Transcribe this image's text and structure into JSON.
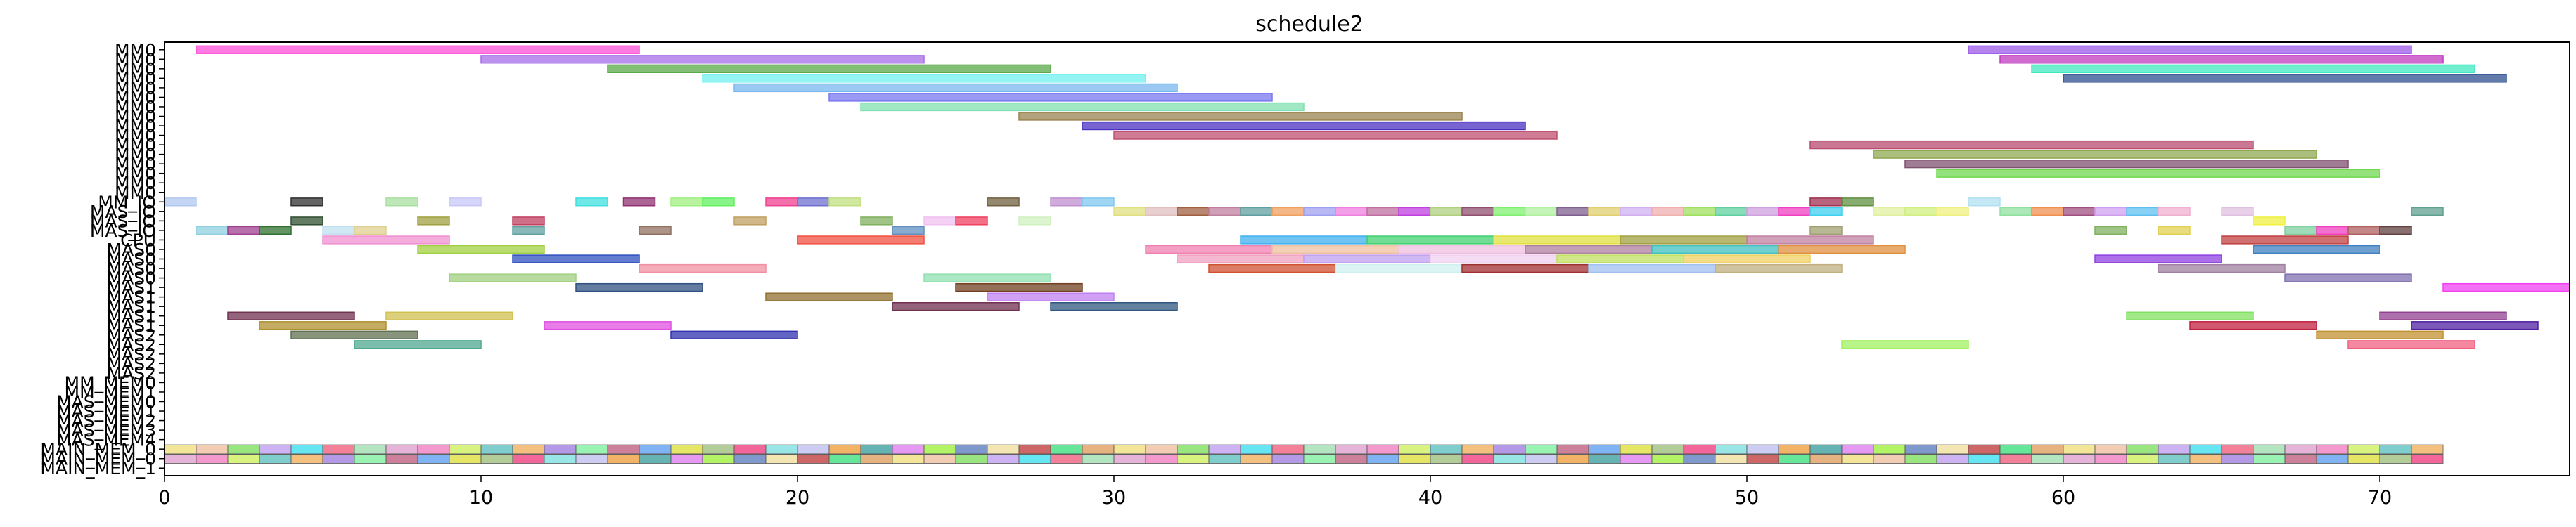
{
  "chart_data": {
    "type": "gantt",
    "title": "schedule2",
    "xlabel": "",
    "ylabel": "",
    "xlim": [
      0,
      76
    ],
    "xticks": [
      0,
      10,
      20,
      30,
      40,
      50,
      60,
      70
    ],
    "grid": false,
    "legend": "none",
    "lanes": [
      "MM0",
      "MM0",
      "MM0",
      "MM0",
      "MM0",
      "MM0",
      "MM0",
      "MM0",
      "MM0",
      "MM0",
      "MM0",
      "MM0",
      "MM0",
      "MM0",
      "MM0",
      "MM0",
      "MM_IO",
      "MAS_IO",
      "MAS_IO",
      "MAS_IO",
      "CPU",
      "MAS0",
      "MAS0",
      "MAS0",
      "MAS0",
      "MAS1",
      "MAS1",
      "MAS1",
      "MAS1",
      "MAS1",
      "MAS2",
      "MAS2",
      "MAS2",
      "MAS2",
      "MAS2",
      "MM_MEM0",
      "MM_MEM1",
      "MAS_MEM0",
      "MAS_MEM1",
      "MAS_MEM2",
      "MAS_MEM3",
      "MAS_MEM4",
      "MAIN_MEM_0",
      "MAIN_MEM_0",
      "MAIN_MEM_1"
    ],
    "tasks": [
      {
        "lane": 0,
        "start": 1,
        "end": 15,
        "color": "#ff4fd8"
      },
      {
        "lane": 0,
        "start": 57,
        "end": 71,
        "color": "#9b59e8"
      },
      {
        "lane": 1,
        "start": 10,
        "end": 24,
        "color": "#a66ee8"
      },
      {
        "lane": 1,
        "start": 58,
        "end": 72,
        "color": "#c03ac0"
      },
      {
        "lane": 2,
        "start": 14,
        "end": 28,
        "color": "#5aa84a"
      },
      {
        "lane": 2,
        "start": 59,
        "end": 73,
        "color": "#40e8c0"
      },
      {
        "lane": 3,
        "start": 17,
        "end": 31,
        "color": "#70f0f0"
      },
      {
        "lane": 3,
        "start": 60,
        "end": 74,
        "color": "#2f4f8f"
      },
      {
        "lane": 4,
        "start": 18,
        "end": 32,
        "color": "#78b8f0"
      },
      {
        "lane": 5,
        "start": 21,
        "end": 35,
        "color": "#7878f0"
      },
      {
        "lane": 6,
        "start": 22,
        "end": 36,
        "color": "#80e0b0"
      },
      {
        "lane": 7,
        "start": 27,
        "end": 41,
        "color": "#9a8450"
      },
      {
        "lane": 8,
        "start": 29,
        "end": 43,
        "color": "#4a30c0"
      },
      {
        "lane": 9,
        "start": 30,
        "end": 44,
        "color": "#c05070"
      },
      {
        "lane": 10,
        "start": 52,
        "end": 66,
        "color": "#b84a70"
      },
      {
        "lane": 11,
        "start": 54,
        "end": 68,
        "color": "#90a850"
      },
      {
        "lane": 12,
        "start": 55,
        "end": 69,
        "color": "#805070"
      },
      {
        "lane": 13,
        "start": 56,
        "end": 70,
        "color": "#6fd84f"
      },
      {
        "lane": 16,
        "start": 0,
        "end": 1,
        "color": "#b0c8f0"
      },
      {
        "lane": 16,
        "start": 4,
        "end": 5,
        "color": "#303030"
      },
      {
        "lane": 16,
        "start": 7,
        "end": 8,
        "color": "#a8e0a0"
      },
      {
        "lane": 16,
        "start": 9,
        "end": 10,
        "color": "#c8c8f8"
      },
      {
        "lane": 16,
        "start": 13,
        "end": 14,
        "color": "#40e0e0"
      },
      {
        "lane": 16,
        "start": 14.5,
        "end": 15.5,
        "color": "#903070"
      },
      {
        "lane": 16,
        "start": 16,
        "end": 17,
        "color": "#a0f080"
      },
      {
        "lane": 16,
        "start": 17,
        "end": 18,
        "color": "#60f060"
      },
      {
        "lane": 16,
        "start": 19,
        "end": 20,
        "color": "#f04090"
      },
      {
        "lane": 16,
        "start": 20,
        "end": 21,
        "color": "#7070d0"
      },
      {
        "lane": 16,
        "start": 21,
        "end": 22,
        "color": "#c0e080"
      },
      {
        "lane": 16,
        "start": 26,
        "end": 27,
        "color": "#706040"
      },
      {
        "lane": 16,
        "start": 28,
        "end": 29,
        "color": "#c090d0"
      },
      {
        "lane": 16,
        "start": 29,
        "end": 30,
        "color": "#80c8f0"
      },
      {
        "lane": 16,
        "start": 52,
        "end": 53,
        "color": "#a03050"
      },
      {
        "lane": 16,
        "start": 53,
        "end": 54,
        "color": "#609040"
      },
      {
        "lane": 16,
        "start": 57,
        "end": 58,
        "color": "#b0e0f0"
      },
      {
        "lane": 17,
        "start": 30,
        "end": 31,
        "color": "#e0e080"
      },
      {
        "lane": 17,
        "start": 31,
        "end": 32,
        "color": "#e0c0c0"
      },
      {
        "lane": 17,
        "start": 32,
        "end": 33,
        "color": "#a06040"
      },
      {
        "lane": 17,
        "start": 33,
        "end": 34,
        "color": "#c080a0"
      },
      {
        "lane": 17,
        "start": 34,
        "end": 35,
        "color": "#60a0a0"
      },
      {
        "lane": 17,
        "start": 35,
        "end": 36,
        "color": "#f0a060"
      },
      {
        "lane": 17,
        "start": 36,
        "end": 37,
        "color": "#a0a0f0"
      },
      {
        "lane": 17,
        "start": 37,
        "end": 38,
        "color": "#f080e0"
      },
      {
        "lane": 17,
        "start": 38,
        "end": 39,
        "color": "#c070a0"
      },
      {
        "lane": 17,
        "start": 39,
        "end": 40,
        "color": "#c040e0"
      },
      {
        "lane": 17,
        "start": 40,
        "end": 41,
        "color": "#b0d080"
      },
      {
        "lane": 17,
        "start": 41,
        "end": 42,
        "color": "#905070"
      },
      {
        "lane": 17,
        "start": 42,
        "end": 43,
        "color": "#80f070"
      },
      {
        "lane": 17,
        "start": 43,
        "end": 44,
        "color": "#b0f0a0"
      },
      {
        "lane": 17,
        "start": 44,
        "end": 45,
        "color": "#806090"
      },
      {
        "lane": 17,
        "start": 45,
        "end": 46,
        "color": "#e0d070"
      },
      {
        "lane": 17,
        "start": 46,
        "end": 47,
        "color": "#d0b0f0"
      },
      {
        "lane": 17,
        "start": 47,
        "end": 48,
        "color": "#f0b0b0"
      },
      {
        "lane": 17,
        "start": 48,
        "end": 49,
        "color": "#a0e060"
      },
      {
        "lane": 17,
        "start": 49,
        "end": 50,
        "color": "#60d0a0"
      },
      {
        "lane": 17,
        "start": 50,
        "end": 51,
        "color": "#d0a0e0"
      },
      {
        "lane": 17,
        "start": 51,
        "end": 52,
        "color": "#f040c0"
      },
      {
        "lane": 17,
        "start": 52,
        "end": 53,
        "color": "#40d0f0"
      },
      {
        "lane": 17,
        "start": 54,
        "end": 55,
        "color": "#e0f0a0"
      },
      {
        "lane": 17,
        "start": 55,
        "end": 56,
        "color": "#d0f080"
      },
      {
        "lane": 17,
        "start": 56,
        "end": 57,
        "color": "#f0f080"
      },
      {
        "lane": 17,
        "start": 58,
        "end": 59,
        "color": "#90e0a0"
      },
      {
        "lane": 17,
        "start": 59,
        "end": 60,
        "color": "#f09050"
      },
      {
        "lane": 17,
        "start": 60,
        "end": 61,
        "color": "#a05080"
      },
      {
        "lane": 17,
        "start": 61,
        "end": 62,
        "color": "#d0a0f0"
      },
      {
        "lane": 17,
        "start": 62,
        "end": 63,
        "color": "#60c0f0"
      },
      {
        "lane": 17,
        "start": 63,
        "end": 64,
        "color": "#f0b0d0"
      },
      {
        "lane": 17,
        "start": 65,
        "end": 66,
        "color": "#e0c0e0"
      },
      {
        "lane": 17,
        "start": 71,
        "end": 72,
        "color": "#60a090"
      },
      {
        "lane": 18,
        "start": 4,
        "end": 5,
        "color": "#305030"
      },
      {
        "lane": 18,
        "start": 8,
        "end": 9,
        "color": "#a0a040"
      },
      {
        "lane": 18,
        "start": 11,
        "end": 12,
        "color": "#c04060"
      },
      {
        "lane": 18,
        "start": 18,
        "end": 19,
        "color": "#c0a060"
      },
      {
        "lane": 18,
        "start": 22,
        "end": 23,
        "color": "#80b060"
      },
      {
        "lane": 18,
        "start": 24,
        "end": 25,
        "color": "#f0c0f0"
      },
      {
        "lane": 18,
        "start": 25,
        "end": 26,
        "color": "#f04060"
      },
      {
        "lane": 18,
        "start": 27,
        "end": 28,
        "color": "#d0f0c0"
      },
      {
        "lane": 18,
        "start": 66,
        "end": 67,
        "color": "#f0f040"
      },
      {
        "lane": 19,
        "start": 1,
        "end": 2,
        "color": "#90d0e0"
      },
      {
        "lane": 19,
        "start": 2,
        "end": 3,
        "color": "#a04090"
      },
      {
        "lane": 19,
        "start": 3,
        "end": 4,
        "color": "#307030"
      },
      {
        "lane": 19,
        "start": 5,
        "end": 6,
        "color": "#c0e0f0"
      },
      {
        "lane": 19,
        "start": 6,
        "end": 7,
        "color": "#e0d090"
      },
      {
        "lane": 19,
        "start": 11,
        "end": 12,
        "color": "#60a0a0"
      },
      {
        "lane": 19,
        "start": 15,
        "end": 16,
        "color": "#907060"
      },
      {
        "lane": 19,
        "start": 23,
        "end": 24,
        "color": "#6090c0"
      },
      {
        "lane": 19,
        "start": 52,
        "end": 53,
        "color": "#a0a070"
      },
      {
        "lane": 19,
        "start": 61,
        "end": 62,
        "color": "#80b060"
      },
      {
        "lane": 19,
        "start": 63,
        "end": 64,
        "color": "#e0d050"
      },
      {
        "lane": 19,
        "start": 67,
        "end": 68,
        "color": "#80d0a0"
      },
      {
        "lane": 19,
        "start": 68,
        "end": 69,
        "color": "#f040c0"
      },
      {
        "lane": 19,
        "start": 69,
        "end": 70,
        "color": "#b06060"
      },
      {
        "lane": 19,
        "start": 70,
        "end": 71,
        "color": "#604040"
      },
      {
        "lane": 20,
        "start": 5,
        "end": 9,
        "color": "#f090d0"
      },
      {
        "lane": 20,
        "start": 20,
        "end": 24,
        "color": "#f05040"
      },
      {
        "lane": 20,
        "start": 34,
        "end": 38,
        "color": "#40b0f0"
      },
      {
        "lane": 20,
        "start": 38,
        "end": 42,
        "color": "#40d070"
      },
      {
        "lane": 20,
        "start": 42,
        "end": 46,
        "color": "#e0e040"
      },
      {
        "lane": 20,
        "start": 46,
        "end": 50,
        "color": "#a0a040"
      },
      {
        "lane": 20,
        "start": 50,
        "end": 54,
        "color": "#c080a0"
      },
      {
        "lane": 20,
        "start": 65,
        "end": 69,
        "color": "#c04040"
      },
      {
        "lane": 21,
        "start": 8,
        "end": 12,
        "color": "#a0d040"
      },
      {
        "lane": 21,
        "start": 31,
        "end": 35,
        "color": "#f080b0"
      },
      {
        "lane": 21,
        "start": 35,
        "end": 39,
        "color": "#f0c0a0"
      },
      {
        "lane": 21,
        "start": 39,
        "end": 43,
        "color": "#f0c0e0"
      },
      {
        "lane": 21,
        "start": 43,
        "end": 47,
        "color": "#b080a0"
      },
      {
        "lane": 21,
        "start": 47,
        "end": 51,
        "color": "#40c0c0"
      },
      {
        "lane": 21,
        "start": 51,
        "end": 55,
        "color": "#e09040"
      },
      {
        "lane": 21,
        "start": 66,
        "end": 70,
        "color": "#4080c0"
      },
      {
        "lane": 22,
        "start": 11,
        "end": 15,
        "color": "#3050c0"
      },
      {
        "lane": 22,
        "start": 32,
        "end": 36,
        "color": "#f0a0c0"
      },
      {
        "lane": 22,
        "start": 36,
        "end": 40,
        "color": "#c0a0f0"
      },
      {
        "lane": 22,
        "start": 40,
        "end": 44,
        "color": "#f0d0f0"
      },
      {
        "lane": 22,
        "start": 44,
        "end": 48,
        "color": "#c0e060"
      },
      {
        "lane": 22,
        "start": 48,
        "end": 52,
        "color": "#f0d060"
      },
      {
        "lane": 22,
        "start": 61,
        "end": 65,
        "color": "#9040e0"
      },
      {
        "lane": 23,
        "start": 15,
        "end": 19,
        "color": "#f090a0"
      },
      {
        "lane": 23,
        "start": 33,
        "end": 37,
        "color": "#d05030"
      },
      {
        "lane": 23,
        "start": 37,
        "end": 41,
        "color": "#d0f0f0"
      },
      {
        "lane": 23,
        "start": 41,
        "end": 45,
        "color": "#a03030"
      },
      {
        "lane": 23,
        "start": 45,
        "end": 49,
        "color": "#a0c0f0"
      },
      {
        "lane": 23,
        "start": 49,
        "end": 53,
        "color": "#c0b080"
      },
      {
        "lane": 23,
        "start": 63,
        "end": 67,
        "color": "#a080a0"
      },
      {
        "lane": 24,
        "start": 9,
        "end": 13,
        "color": "#a0d080"
      },
      {
        "lane": 24,
        "start": 24,
        "end": 28,
        "color": "#90e0b0"
      },
      {
        "lane": 24,
        "start": 67,
        "end": 71,
        "color": "#8070b0"
      },
      {
        "lane": 25,
        "start": 13,
        "end": 17,
        "color": "#305080"
      },
      {
        "lane": 25,
        "start": 25,
        "end": 29,
        "color": "#704020"
      },
      {
        "lane": 25,
        "start": 72,
        "end": 76,
        "color": "#f040f0"
      },
      {
        "lane": 26,
        "start": 19,
        "end": 23,
        "color": "#907030"
      },
      {
        "lane": 26,
        "start": 26,
        "end": 30,
        "color": "#c080f0"
      },
      {
        "lane": 27,
        "start": 23,
        "end": 27,
        "color": "#703050"
      },
      {
        "lane": 27,
        "start": 28,
        "end": 32,
        "color": "#305880"
      },
      {
        "lane": 28,
        "start": 2,
        "end": 6,
        "color": "#703050"
      },
      {
        "lane": 28,
        "start": 7,
        "end": 11,
        "color": "#d0c050"
      },
      {
        "lane": 28,
        "start": 62,
        "end": 66,
        "color": "#80e060"
      },
      {
        "lane": 28,
        "start": 70,
        "end": 74,
        "color": "#904090"
      },
      {
        "lane": 29,
        "start": 3,
        "end": 7,
        "color": "#b09030"
      },
      {
        "lane": 29,
        "start": 12,
        "end": 16,
        "color": "#e050e0"
      },
      {
        "lane": 29,
        "start": 64,
        "end": 68,
        "color": "#c02040"
      },
      {
        "lane": 29,
        "start": 71,
        "end": 75,
        "color": "#5020a0"
      },
      {
        "lane": 30,
        "start": 4,
        "end": 8,
        "color": "#607050"
      },
      {
        "lane": 30,
        "start": 16,
        "end": 20,
        "color": "#3030b0"
      },
      {
        "lane": 30,
        "start": 68,
        "end": 72,
        "color": "#c09030"
      },
      {
        "lane": 31,
        "start": 6,
        "end": 10,
        "color": "#50a890"
      },
      {
        "lane": 31,
        "start": 53,
        "end": 57,
        "color": "#a0f060"
      },
      {
        "lane": 31,
        "start": 69,
        "end": 73,
        "color": "#f06080"
      }
    ],
    "mem_strips": {
      "lanes": [
        42,
        43
      ],
      "start": 0,
      "end": 72,
      "colors": [
        "#f0e080",
        "#f0c0a0",
        "#80e060",
        "#c0a0f0",
        "#40e0f0",
        "#f06080",
        "#a0e0b0",
        "#e0a0d0",
        "#f080c0",
        "#d0f060",
        "#60c0c0",
        "#f0b060",
        "#a080e0",
        "#80f0a0",
        "#c06080",
        "#60a0f0",
        "#e0e040",
        "#a0c080",
        "#f04080",
        "#80e0e0",
        "#c0c0f0",
        "#f0a040",
        "#40a0a0",
        "#e080f0",
        "#a0f040",
        "#6080c0",
        "#f0e0a0",
        "#c04040",
        "#40e080",
        "#e0a060"
      ]
    }
  }
}
